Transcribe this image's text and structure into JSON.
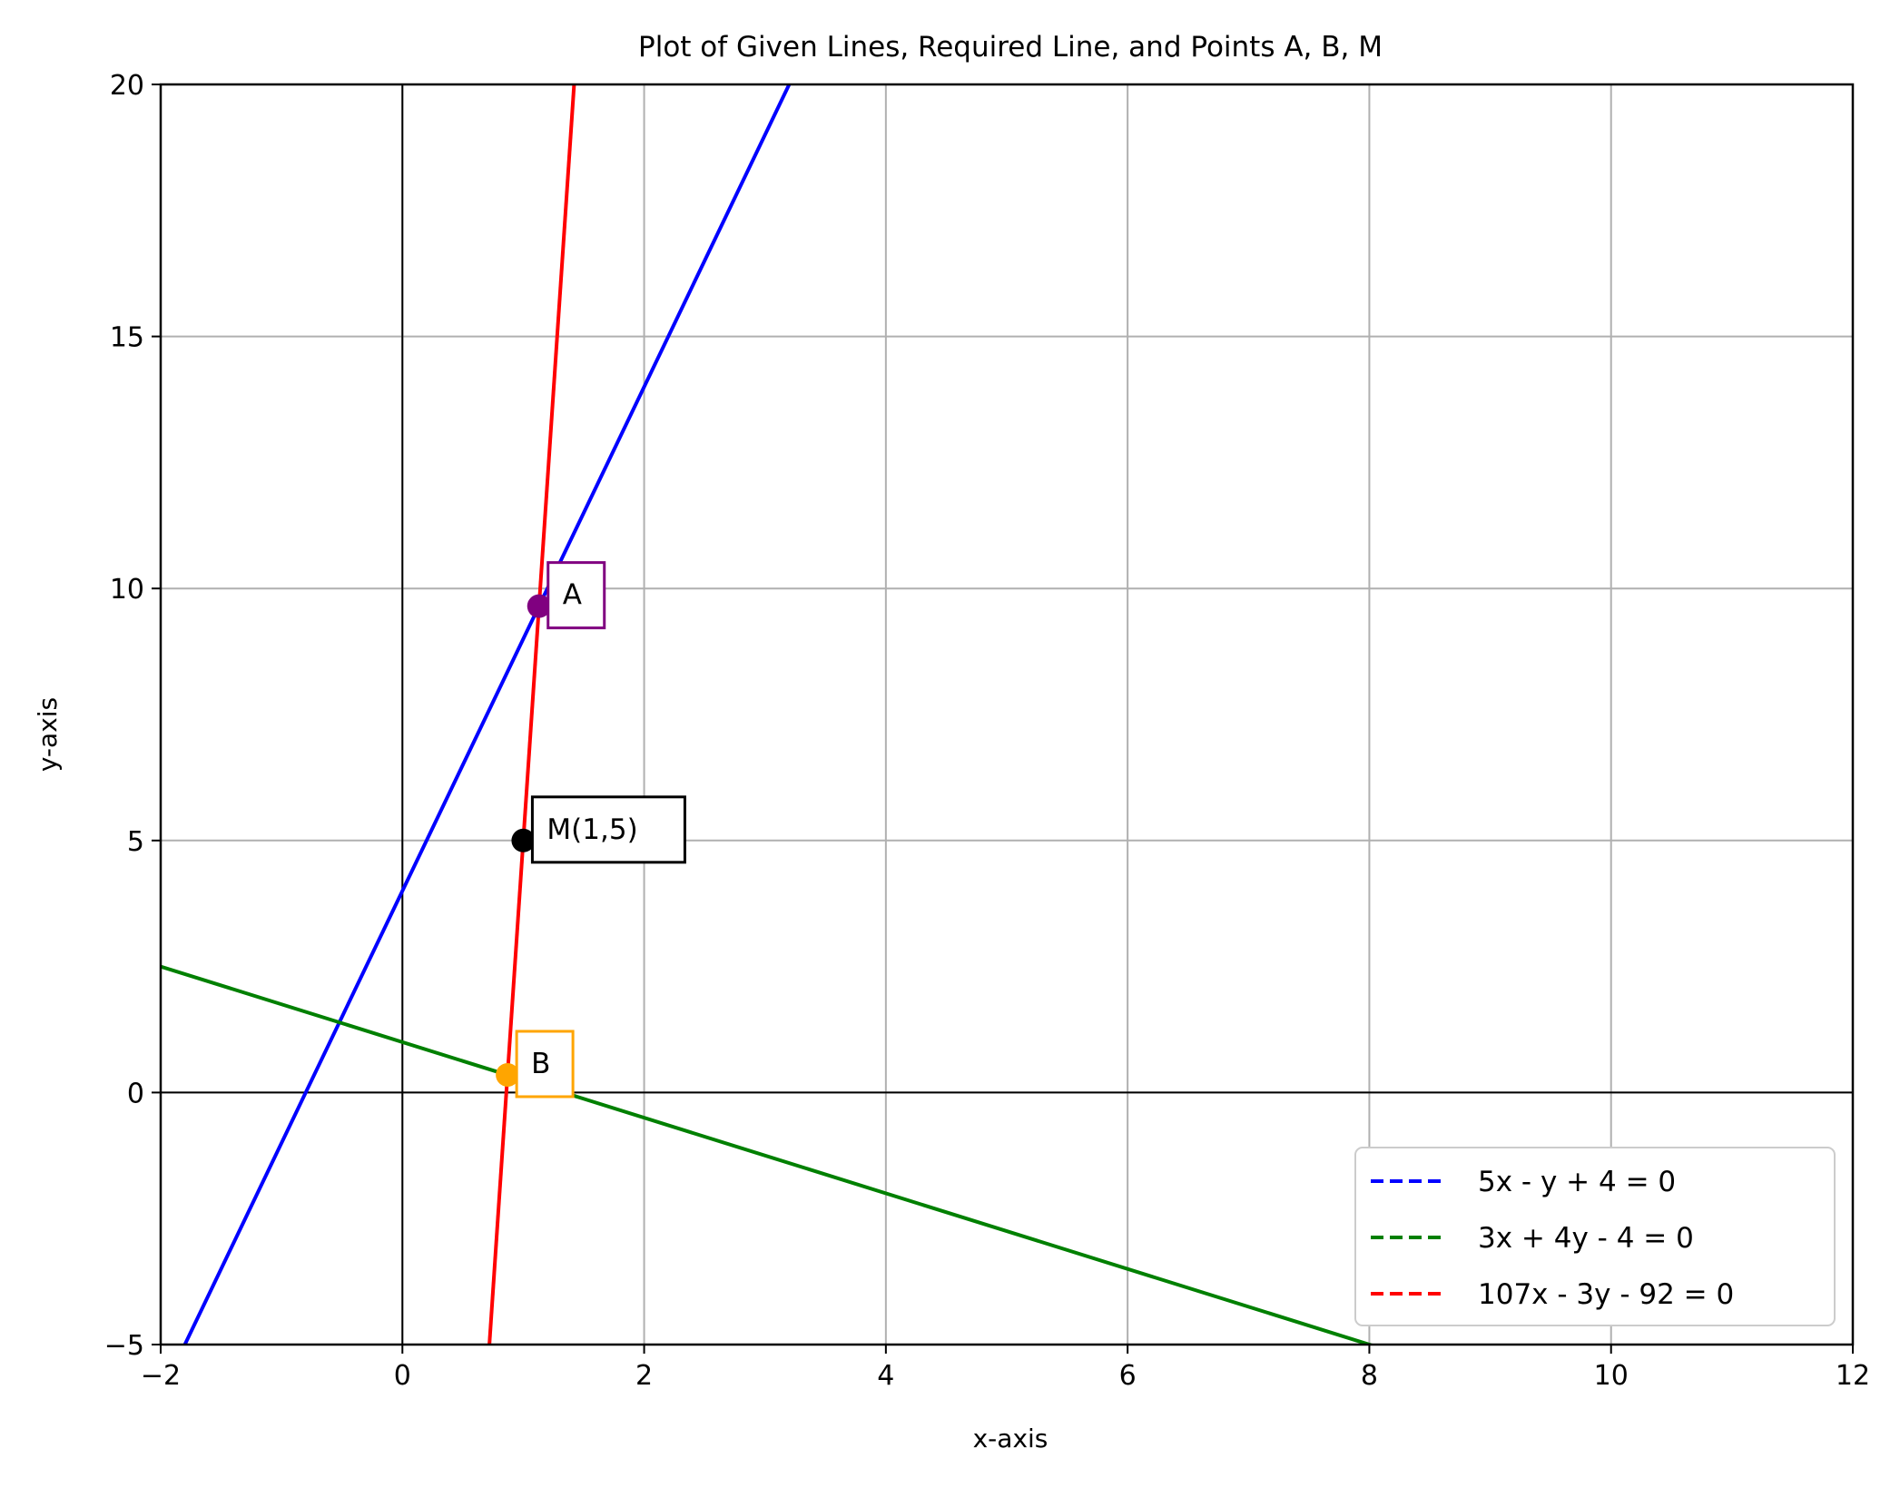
{
  "chart_data": {
    "type": "line",
    "title": "Plot of Given Lines, Required Line, and Points A, B, M",
    "xlabel": "x-axis",
    "ylabel": "y-axis",
    "xlim": [
      -2,
      12
    ],
    "ylim": [
      -5,
      20
    ],
    "xticks": [
      -2,
      0,
      2,
      4,
      6,
      8,
      10,
      12
    ],
    "xtick_labels": [
      "−2",
      "0",
      "2",
      "4",
      "6",
      "8",
      "10",
      "12"
    ],
    "yticks": [
      -5,
      0,
      5,
      10,
      15,
      20
    ],
    "ytick_labels": [
      "−5",
      "0",
      "5",
      "10",
      "15",
      "20"
    ],
    "grid": true,
    "legend_position": "lower-right",
    "series": [
      {
        "name": "5x - y + 4 = 0",
        "color": "#0000ff",
        "a": 5,
        "b": -1,
        "c": 4
      },
      {
        "name": "3x + 4y - 4 = 0",
        "color": "#008000",
        "a": 3,
        "b": 4,
        "c": -4
      },
      {
        "name": "107x - 3y - 92 = 0",
        "color": "#ff0000",
        "a": 107,
        "b": -3,
        "c": -92
      }
    ],
    "points": [
      {
        "label": "A",
        "x": 1.13,
        "y": 9.65,
        "color": "#800080"
      },
      {
        "label": "M(1,5)",
        "x": 1,
        "y": 5,
        "color": "#000000"
      },
      {
        "label": "B",
        "x": 0.87,
        "y": 0.35,
        "color": "#ffa500"
      }
    ]
  }
}
